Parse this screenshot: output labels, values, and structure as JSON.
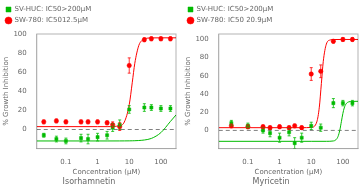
{
  "chart_data": [
    {
      "type": "scatter",
      "title": "Isorhamnetin",
      "xlabel": "Concentration (μM)",
      "ylabel": "% Growth Inhibition",
      "log": "x",
      "xlim": [
        0.012,
        300
      ],
      "xticks": [
        0.1,
        1,
        10,
        100
      ],
      "ylim": [
        -20,
        100
      ],
      "yticks": [
        0,
        20,
        40,
        60,
        80,
        100
      ],
      "grid": false,
      "legend": "upper left",
      "series": [
        {
          "type": "line",
          "color": "#00bb00",
          "line_style": "solid",
          "x": [
            0.012,
            0.1,
            1,
            2,
            5,
            7,
            10,
            12.5,
            15,
            20,
            25,
            30,
            50,
            100,
            200,
            300
          ],
          "values": [
            -12,
            -12,
            -12,
            -12,
            -11.97,
            -11.94,
            -11.89,
            -11.82,
            -11.74,
            -11.55,
            -11.3,
            -11,
            -9.35,
            -3.27,
            8.44,
            15.21
          ]
        },
        {
          "type": "line",
          "color": "#ff0000",
          "line_style": "solid",
          "x": [
            0.012,
            0.1,
            1,
            2,
            5,
            7,
            10,
            12.5,
            15,
            20,
            25,
            30,
            50,
            100,
            200,
            300
          ],
          "values": [
            3,
            3,
            3,
            3.01,
            3.94,
            7.85,
            25.95,
            49.5,
            69.34,
            87.9,
            93.18,
            94.85,
            95.91,
            96,
            96,
            96
          ]
        },
        {
          "name": "SV-HUC: IC50>200μM",
          "type": "scatter",
          "marker": "square",
          "color": "#00bb00",
          "x": [
            0.02,
            0.05,
            0.1,
            0.3,
            0.5,
            1,
            2,
            3,
            5,
            10,
            30,
            50,
            100,
            200
          ],
          "values": [
            -6,
            -10,
            -12,
            -9,
            -10,
            -8,
            -6,
            2,
            5,
            21,
            23,
            23,
            22,
            22
          ],
          "yerr": [
            2,
            3,
            3,
            4,
            5,
            4,
            4,
            4,
            5,
            4,
            4,
            3,
            3,
            3
          ]
        },
        {
          "name": "SW-780: IC5012.5μM",
          "type": "scatter",
          "marker": "circle",
          "color": "#ff0000",
          "x": [
            0.02,
            0.05,
            0.1,
            0.3,
            0.5,
            1,
            2,
            3,
            5,
            10,
            30,
            50,
            100,
            200
          ],
          "values": [
            8,
            9,
            8,
            8,
            8,
            8,
            7,
            5,
            3,
            67,
            94,
            95,
            95,
            95
          ],
          "yerr": [
            2,
            2,
            2,
            2,
            2,
            2,
            2,
            3,
            4,
            8,
            2,
            2,
            2,
            2
          ]
        },
        {
          "type": "line",
          "color": "gray",
          "line_style": "dashed",
          "x": [
            0.012,
            300
          ],
          "values": [
            0,
            0
          ]
        }
      ]
    },
    {
      "type": "scatter",
      "title": "Myricetin",
      "xlabel": "Concentration (μM)",
      "ylabel": "% Growth Inhibition",
      "log": "x",
      "xlim": [
        0.012,
        300
      ],
      "xticks": [
        0.1,
        1,
        10,
        100
      ],
      "ylim": [
        -20,
        106
      ],
      "yticks": [
        0,
        20,
        40,
        60,
        80,
        100
      ],
      "grid": false,
      "legend": "upper left",
      "series": [
        {
          "type": "line",
          "color": "#00bb00",
          "line_style": "solid",
          "x": [
            0.012,
            1,
            10,
            30,
            50,
            60,
            70,
            80,
            90,
            100,
            110,
            125,
            150,
            200,
            300
          ],
          "values": [
            -12,
            -12,
            -12,
            -11.99,
            -11.6,
            -10.35,
            -6.8,
            0.34,
            10,
            18.76,
            24.64,
            29.04,
            31.27,
            31.93,
            32
          ]
        },
        {
          "type": "line",
          "color": "#ff0000",
          "line_style": "solid",
          "x": [
            0.012,
            0.1,
            1,
            5,
            10,
            15,
            18,
            20.9,
            24,
            30,
            40,
            50,
            100,
            200,
            300
          ],
          "values": [
            3,
            3,
            3,
            3,
            3.27,
            9.38,
            25.54,
            51.5,
            75.89,
            94.9,
            99.46,
            99.91,
            100,
            100,
            100
          ]
        },
        {
          "name": "SV-HUC: IC50>200μM",
          "type": "scatter",
          "marker": "square",
          "color": "#00bb00",
          "x": [
            0.03,
            0.1,
            0.3,
            0.5,
            1,
            2,
            3,
            5,
            10,
            20,
            50,
            100,
            200
          ],
          "values": [
            8,
            5,
            0,
            -3,
            -8,
            -2,
            -14,
            -8,
            5,
            3,
            30,
            30,
            30
          ],
          "yerr": [
            3,
            3,
            3,
            4,
            5,
            4,
            6,
            5,
            4,
            4,
            5,
            3,
            3
          ]
        },
        {
          "name": "SW-780: IC50 20.9μM",
          "type": "scatter",
          "marker": "circle",
          "color": "#ff0000",
          "x": [
            0.03,
            0.1,
            0.3,
            0.5,
            1,
            2,
            3,
            5,
            10,
            20,
            50,
            100,
            200
          ],
          "values": [
            5,
            4,
            4,
            3,
            4,
            3,
            5,
            3,
            62,
            65,
            98,
            100,
            100
          ],
          "yerr": [
            2,
            2,
            2,
            2,
            2,
            2,
            2,
            2,
            7,
            7,
            2,
            2,
            2
          ]
        },
        {
          "type": "line",
          "color": "gray",
          "line_style": "dashed",
          "x": [
            0.012,
            300
          ],
          "values": [
            0,
            0
          ]
        }
      ]
    }
  ]
}
